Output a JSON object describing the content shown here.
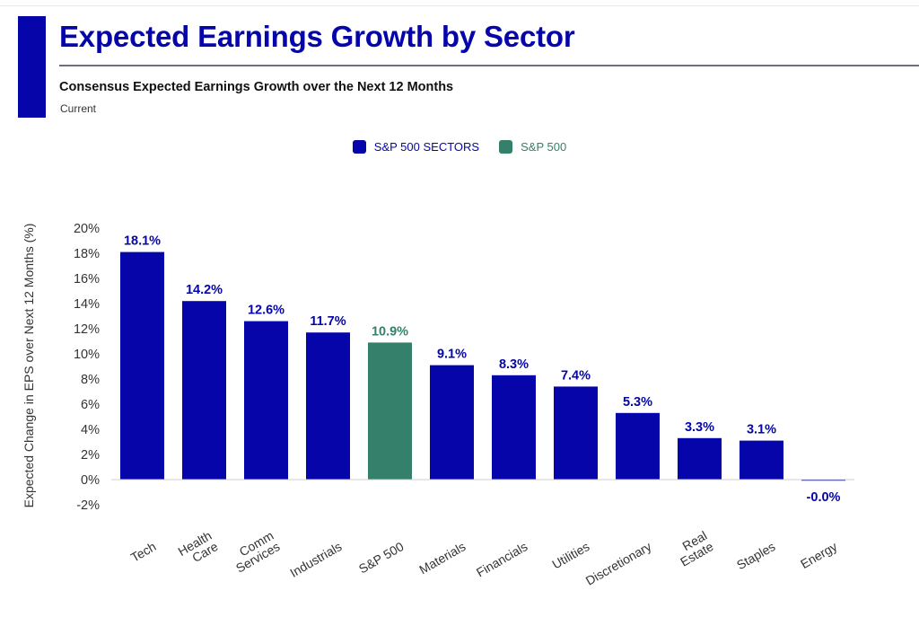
{
  "header": {
    "title": "Expected Earnings Growth by Sector",
    "subtitle": "Consensus Expected Earnings Growth over the Next 12 Months",
    "caption": "Current"
  },
  "colors": {
    "brand": "#0505a9",
    "sectors": "#0505a9",
    "index": "#35806a",
    "text": "#333333"
  },
  "legend": {
    "position": "top-center",
    "items": [
      {
        "label": "S&P 500 SECTORS",
        "color": "#0505a9"
      },
      {
        "label": "S&P 500",
        "color": "#35806a"
      }
    ]
  },
  "chart_data": {
    "type": "bar",
    "title": "Expected Earnings Growth by Sector",
    "subtitle": "Consensus Expected Earnings Growth over the Next 12 Months",
    "xlabel": "",
    "ylabel": "Expected Change in EPS over Next 12 Months (%)",
    "ylim": [
      -2,
      20
    ],
    "yticks": [
      -2,
      0,
      2,
      4,
      6,
      8,
      10,
      12,
      14,
      16,
      18,
      20
    ],
    "ytick_labels": [
      "-2%",
      "0%",
      "2%",
      "4%",
      "6%",
      "8%",
      "10%",
      "12%",
      "14%",
      "16%",
      "18%",
      "20%"
    ],
    "grid": false,
    "categories": [
      [
        "Tech"
      ],
      [
        "Health",
        "Care"
      ],
      [
        "Comm",
        "Services"
      ],
      [
        "Industrials"
      ],
      [
        "S&P 500"
      ],
      [
        "Materials"
      ],
      [
        "Financials"
      ],
      [
        "Utilities"
      ],
      [
        "Discretionary"
      ],
      [
        "Real",
        "Estate"
      ],
      [
        "Staples"
      ],
      [
        "Energy"
      ]
    ],
    "values": [
      18.1,
      14.2,
      12.6,
      11.7,
      10.9,
      9.1,
      8.3,
      7.4,
      5.3,
      3.3,
      3.1,
      -0.0
    ],
    "data_labels": [
      "18.1%",
      "14.2%",
      "12.6%",
      "11.7%",
      "10.9%",
      "9.1%",
      "8.3%",
      "7.4%",
      "5.3%",
      "3.3%",
      "3.1%",
      "-0.0%"
    ],
    "series_groups": [
      "S&P 500 SECTORS",
      "S&P 500 SECTORS",
      "S&P 500 SECTORS",
      "S&P 500 SECTORS",
      "S&P 500",
      "S&P 500 SECTORS",
      "S&P 500 SECTORS",
      "S&P 500 SECTORS",
      "S&P 500 SECTORS",
      "S&P 500 SECTORS",
      "S&P 500 SECTORS",
      "S&P 500 SECTORS"
    ]
  }
}
